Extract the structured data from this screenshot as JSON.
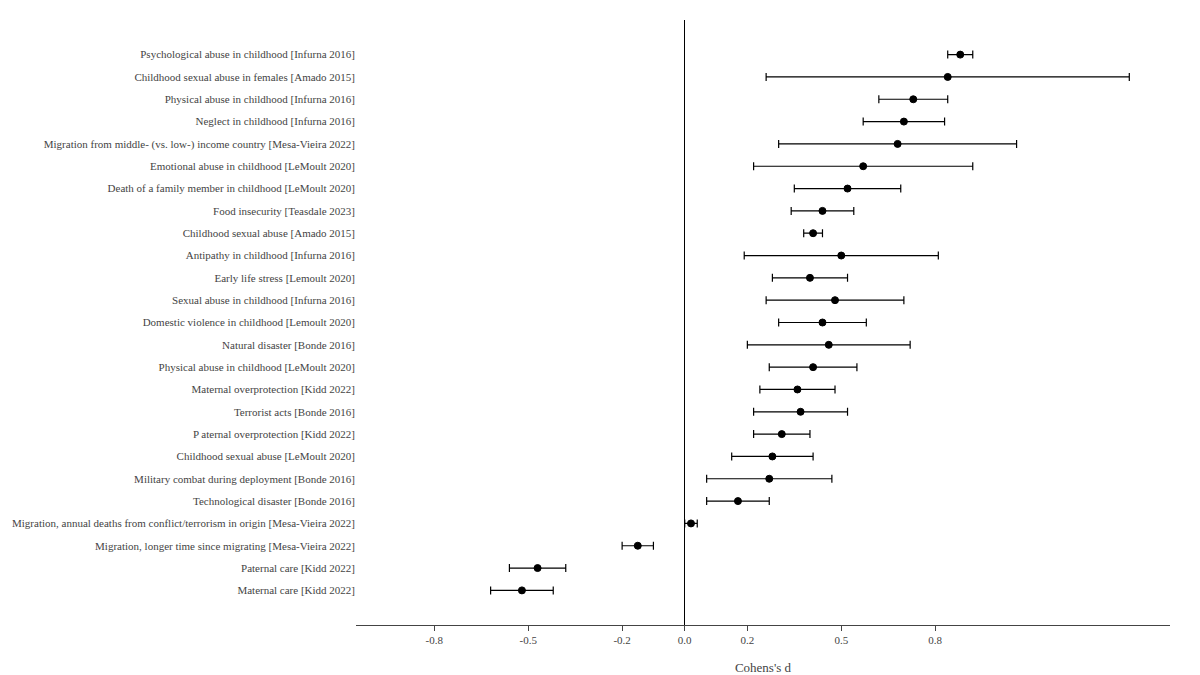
{
  "chart_data": {
    "type": "scatter",
    "xlabel": "Cohens's d",
    "categories": [
      "Psychological abuse in childhood [Infurna 2016]",
      "Childhood sexual abuse in females [Amado 2015]",
      "Physical abuse in childhood [Infurna 2016]",
      "Neglect in childhood [Infurna 2016]",
      "Migration from middle- (vs. low-) income country [Mesa-Vieira 2022]",
      "Emotional abuse in childhood [LeMoult 2020]",
      "Death of a family member in childhood [LeMoult 2020]",
      "Food insecurity [Teasdale 2023]",
      "Childhood sexual abuse [Amado 2015]",
      "Antipathy in childhood [Infurna 2016]",
      "Early life stress [Lemoult 2020]",
      "Sexual abuse in childhood [Infurna 2016]",
      "Domestic violence in childhood [Lemoult 2020]",
      "Natural disaster [Bonde 2016]",
      "Physical abuse in childhood [LeMoult 2020]",
      "Maternal overprotection [Kidd 2022]",
      "Terrorist acts [Bonde 2016]",
      "P aternal overprotection [Kidd 2022]",
      "Childhood sexual abuse [LeMoult 2020]",
      "Military combat during deployment [Bonde 2016]",
      "Technological disaster [Bonde 2016]",
      "Migration, annual deaths from conflict/terrorism in origin [Mesa-Vieira 2022]",
      "Migration, longer time since migrating [Mesa-Vieira 2022]",
      "Paternal care [Kidd 2022]",
      "Maternal care [Kidd 2022]"
    ],
    "values": [
      0.88,
      0.84,
      0.73,
      0.7,
      0.68,
      0.57,
      0.52,
      0.44,
      0.41,
      0.5,
      0.4,
      0.48,
      0.44,
      0.46,
      0.41,
      0.36,
      0.37,
      0.31,
      0.28,
      0.27,
      0.17,
      0.02,
      -0.15,
      -0.47,
      -0.52
    ],
    "ci_lo": [
      0.84,
      0.26,
      0.62,
      0.57,
      0.3,
      0.22,
      0.35,
      0.34,
      0.38,
      0.19,
      0.28,
      0.26,
      0.3,
      0.2,
      0.27,
      0.24,
      0.22,
      0.22,
      0.15,
      0.07,
      0.07,
      0.0,
      -0.2,
      -0.56,
      -0.62
    ],
    "ci_hi": [
      0.92,
      1.42,
      0.84,
      0.83,
      1.06,
      0.92,
      0.69,
      0.54,
      0.44,
      0.81,
      0.52,
      0.7,
      0.58,
      0.72,
      0.55,
      0.48,
      0.52,
      0.4,
      0.41,
      0.47,
      0.27,
      0.04,
      -0.1,
      -0.38,
      -0.42
    ],
    "color": "black",
    "marker": "circle",
    "xlim": [
      -1.05,
      1.55
    ],
    "xticks": [
      -0.8,
      -0.5,
      -0.2,
      {
        "value": 0.0,
        "label": "0.0"
      },
      0.2,
      0.5,
      0.8
    ],
    "grid": false
  }
}
